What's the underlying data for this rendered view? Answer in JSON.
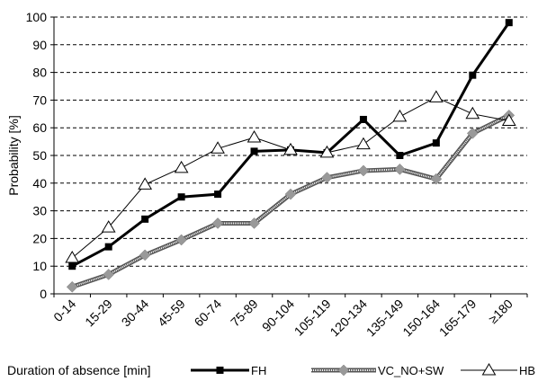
{
  "chart_data": {
    "type": "line",
    "categories": [
      "0-14",
      "15-29",
      "30-44",
      "45-59",
      "60-74",
      "75-89",
      "90-104",
      "105-119",
      "120-134",
      "135-149",
      "150-164",
      "165-179",
      "≥180"
    ],
    "series": [
      {
        "name": "FH",
        "values": [
          10,
          17,
          27,
          35,
          36,
          51.5,
          52,
          51,
          63,
          50,
          54.5,
          79,
          98
        ],
        "color": "#000000",
        "marker": "square"
      },
      {
        "name": "VC_NO+SW",
        "values": [
          2.5,
          7,
          14,
          19.5,
          25.5,
          25.5,
          36,
          42,
          44.5,
          45,
          41.5,
          58,
          64.5
        ],
        "color": "#999999",
        "marker": "diamond"
      },
      {
        "name": "HB",
        "values": [
          13,
          24,
          39.5,
          45.5,
          52.5,
          56.5,
          52,
          51,
          54,
          64,
          71,
          65,
          62.5
        ],
        "color": "#000000",
        "marker": "triangle"
      }
    ],
    "ylabel": "Probability [%]",
    "xlabel": "Duration of absence [min]",
    "ylim": [
      0,
      100
    ],
    "yticks": [
      0,
      10,
      20,
      30,
      40,
      50,
      60,
      70,
      80,
      90,
      100
    ],
    "grid": "horizontal dashed",
    "legend": "bottom"
  }
}
